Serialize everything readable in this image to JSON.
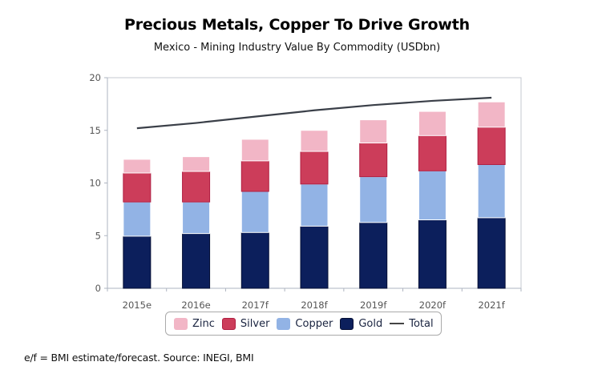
{
  "chart_data": {
    "type": "bar",
    "stacked": true,
    "title": "Precious Metals, Copper To Drive Growth",
    "subtitle": "Mexico - Mining Industry Value By Commodity (USDbn)",
    "xlabel": "",
    "ylabel": "",
    "ylim": [
      0,
      20
    ],
    "yticks": [
      0,
      5,
      10,
      15,
      20
    ],
    "grid": false,
    "legend_position": "bottom",
    "categories": [
      "2015e",
      "2016e",
      "2017f",
      "2018f",
      "2019f",
      "2020f",
      "2021f"
    ],
    "series": [
      {
        "name": "Gold",
        "type": "bar",
        "color": "#0c1f5c",
        "values": [
          4.95,
          5.2,
          5.3,
          5.9,
          6.25,
          6.5,
          6.7
        ]
      },
      {
        "name": "Copper",
        "type": "bar",
        "color": "#92b3e5",
        "values": [
          3.25,
          3.0,
          3.9,
          4.0,
          4.35,
          4.65,
          5.05
        ]
      },
      {
        "name": "Silver",
        "type": "bar",
        "color": "#cc3d5a",
        "values": [
          2.75,
          2.9,
          2.9,
          3.1,
          3.2,
          3.35,
          3.55
        ]
      },
      {
        "name": "Zinc",
        "type": "bar",
        "color": "#f2b6c6",
        "values": [
          1.3,
          1.4,
          2.05,
          2.0,
          2.2,
          2.3,
          2.4
        ]
      },
      {
        "name": "Total",
        "type": "line",
        "color": "#3a3f48",
        "values": [
          15.2,
          15.7,
          16.3,
          16.9,
          17.4,
          17.8,
          18.1
        ]
      }
    ],
    "legend": [
      {
        "name": "Zinc",
        "kind": "swatch",
        "color": "#f2b6c6"
      },
      {
        "name": "Silver",
        "kind": "swatch",
        "color": "#cc3d5a"
      },
      {
        "name": "Copper",
        "kind": "swatch",
        "color": "#92b3e5"
      },
      {
        "name": "Gold",
        "kind": "swatch",
        "color": "#0c1f5c"
      },
      {
        "name": "Total",
        "kind": "line",
        "color": "#3a3f48"
      }
    ]
  },
  "footnote": "e/f = BMI estimate/forecast. Source: INEGI, BMI"
}
